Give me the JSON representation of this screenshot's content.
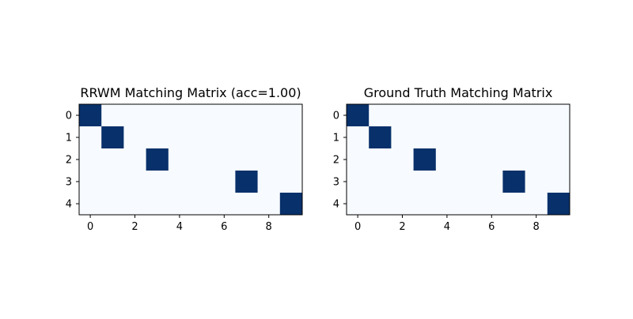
{
  "colors": {
    "background_cell": "#f7fbff",
    "match_cell": "#08306b",
    "axis": "#000000",
    "page_bg": "#ffffff"
  },
  "chart_data": [
    {
      "type": "heatmap",
      "title": "RRWM Matching Matrix (acc=1.00)",
      "rows": [
        0,
        1,
        2,
        3,
        4
      ],
      "cols": [
        0,
        1,
        2,
        3,
        4,
        5,
        6,
        7,
        8,
        9
      ],
      "x_ticks": [
        0,
        2,
        4,
        6,
        8
      ],
      "y_ticks": [
        0,
        1,
        2,
        3,
        4
      ],
      "xlim": [
        -0.5,
        9.5
      ],
      "ylim": [
        4.5,
        -0.5
      ],
      "matrix": [
        [
          1,
          0,
          0,
          0,
          0,
          0,
          0,
          0,
          0,
          0
        ],
        [
          0,
          1,
          0,
          0,
          0,
          0,
          0,
          0,
          0,
          0
        ],
        [
          0,
          0,
          0,
          1,
          0,
          0,
          0,
          0,
          0,
          0
        ],
        [
          0,
          0,
          0,
          0,
          0,
          0,
          0,
          1,
          0,
          0
        ],
        [
          0,
          0,
          0,
          0,
          0,
          0,
          0,
          0,
          0,
          1
        ]
      ]
    },
    {
      "type": "heatmap",
      "title": "Ground Truth Matching Matrix",
      "rows": [
        0,
        1,
        2,
        3,
        4
      ],
      "cols": [
        0,
        1,
        2,
        3,
        4,
        5,
        6,
        7,
        8,
        9
      ],
      "x_ticks": [
        0,
        2,
        4,
        6,
        8
      ],
      "y_ticks": [
        0,
        1,
        2,
        3,
        4
      ],
      "xlim": [
        -0.5,
        9.5
      ],
      "ylim": [
        4.5,
        -0.5
      ],
      "matrix": [
        [
          1,
          0,
          0,
          0,
          0,
          0,
          0,
          0,
          0,
          0
        ],
        [
          0,
          1,
          0,
          0,
          0,
          0,
          0,
          0,
          0,
          0
        ],
        [
          0,
          0,
          0,
          1,
          0,
          0,
          0,
          0,
          0,
          0
        ],
        [
          0,
          0,
          0,
          0,
          0,
          0,
          0,
          1,
          0,
          0
        ],
        [
          0,
          0,
          0,
          0,
          0,
          0,
          0,
          0,
          0,
          1
        ]
      ]
    }
  ]
}
